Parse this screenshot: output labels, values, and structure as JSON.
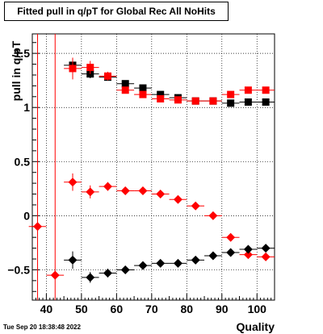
{
  "chart_data": {
    "type": "scatter",
    "title": "Fitted pull in q/pT for Global Rec All NoHits",
    "xlabel": "Quality",
    "ylabel": "pull in q/pT",
    "timestamp": "Tue Sep 20 18:38:48 2022",
    "xlim": [
      36,
      105
    ],
    "ylim": [
      -0.78,
      1.68
    ],
    "x_ticks": [
      40,
      50,
      60,
      70,
      80,
      90,
      100
    ],
    "y_ticks": [
      -0.5,
      0,
      0.5,
      1,
      1.5
    ],
    "y_tick_labels": [
      "−0.5",
      "0",
      "0.5",
      "1",
      "1.5"
    ],
    "grid": true,
    "vertical_lines": [
      37.5,
      42.5
    ],
    "colors": {
      "black": "#000000",
      "red": "#ff0000"
    },
    "series": [
      {
        "color": "black",
        "marker": "square",
        "x": [
          47.5,
          52.5,
          57.5,
          62.5,
          67.5,
          72.5,
          77.5,
          82.5,
          87.5,
          92.5,
          97.5,
          102.5
        ],
        "y": [
          1.39,
          1.31,
          1.28,
          1.22,
          1.18,
          1.12,
          1.09,
          1.06,
          1.06,
          1.04,
          1.05,
          1.05
        ],
        "yerr": [
          0.05,
          0.04,
          0.03,
          0.02,
          0.02,
          0.02,
          0.02,
          0.02,
          0.01,
          0.01,
          0.01,
          0.01
        ]
      },
      {
        "color": "red",
        "marker": "square",
        "x": [
          47.5,
          52.5,
          57.5,
          62.5,
          67.5,
          72.5,
          77.5,
          82.5,
          87.5,
          92.5,
          97.5,
          102.5
        ],
        "y": [
          1.36,
          1.37,
          1.29,
          1.16,
          1.12,
          1.08,
          1.07,
          1.06,
          1.06,
          1.12,
          1.16,
          1.16
        ],
        "yerr": [
          0.1,
          0.06,
          0.04,
          0.03,
          0.02,
          0.02,
          0.02,
          0.02,
          0.01,
          0.01,
          0.01,
          0.01
        ]
      },
      {
        "color": "red",
        "marker": "diamond",
        "x": [
          37.5,
          42.5,
          47.5,
          52.5,
          57.5,
          62.5,
          67.5,
          72.5,
          77.5,
          82.5,
          87.5,
          92.5,
          97.5,
          102.5
        ],
        "y": [
          -0.1,
          -0.55,
          0.31,
          0.22,
          0.27,
          0.23,
          0.23,
          0.2,
          0.15,
          0.09,
          0.0,
          -0.2,
          -0.36,
          -0.38
        ],
        "yerr": [
          0.02,
          0.02,
          0.08,
          0.06,
          0.04,
          0.03,
          0.02,
          0.02,
          0.02,
          0.02,
          0.02,
          0.02,
          0.03,
          0.02
        ]
      },
      {
        "color": "black",
        "marker": "diamond",
        "x": [
          47.5,
          52.5,
          57.5,
          62.5,
          67.5,
          72.5,
          77.5,
          82.5,
          87.5,
          92.5,
          97.5,
          102.5
        ],
        "y": [
          -0.41,
          -0.57,
          -0.53,
          -0.5,
          -0.46,
          -0.44,
          -0.44,
          -0.41,
          -0.37,
          -0.34,
          -0.31,
          -0.3
        ],
        "yerr": [
          0.08,
          0.05,
          0.04,
          0.03,
          0.02,
          0.02,
          0.02,
          0.02,
          0.02,
          0.02,
          0.03,
          0.02
        ]
      }
    ]
  }
}
